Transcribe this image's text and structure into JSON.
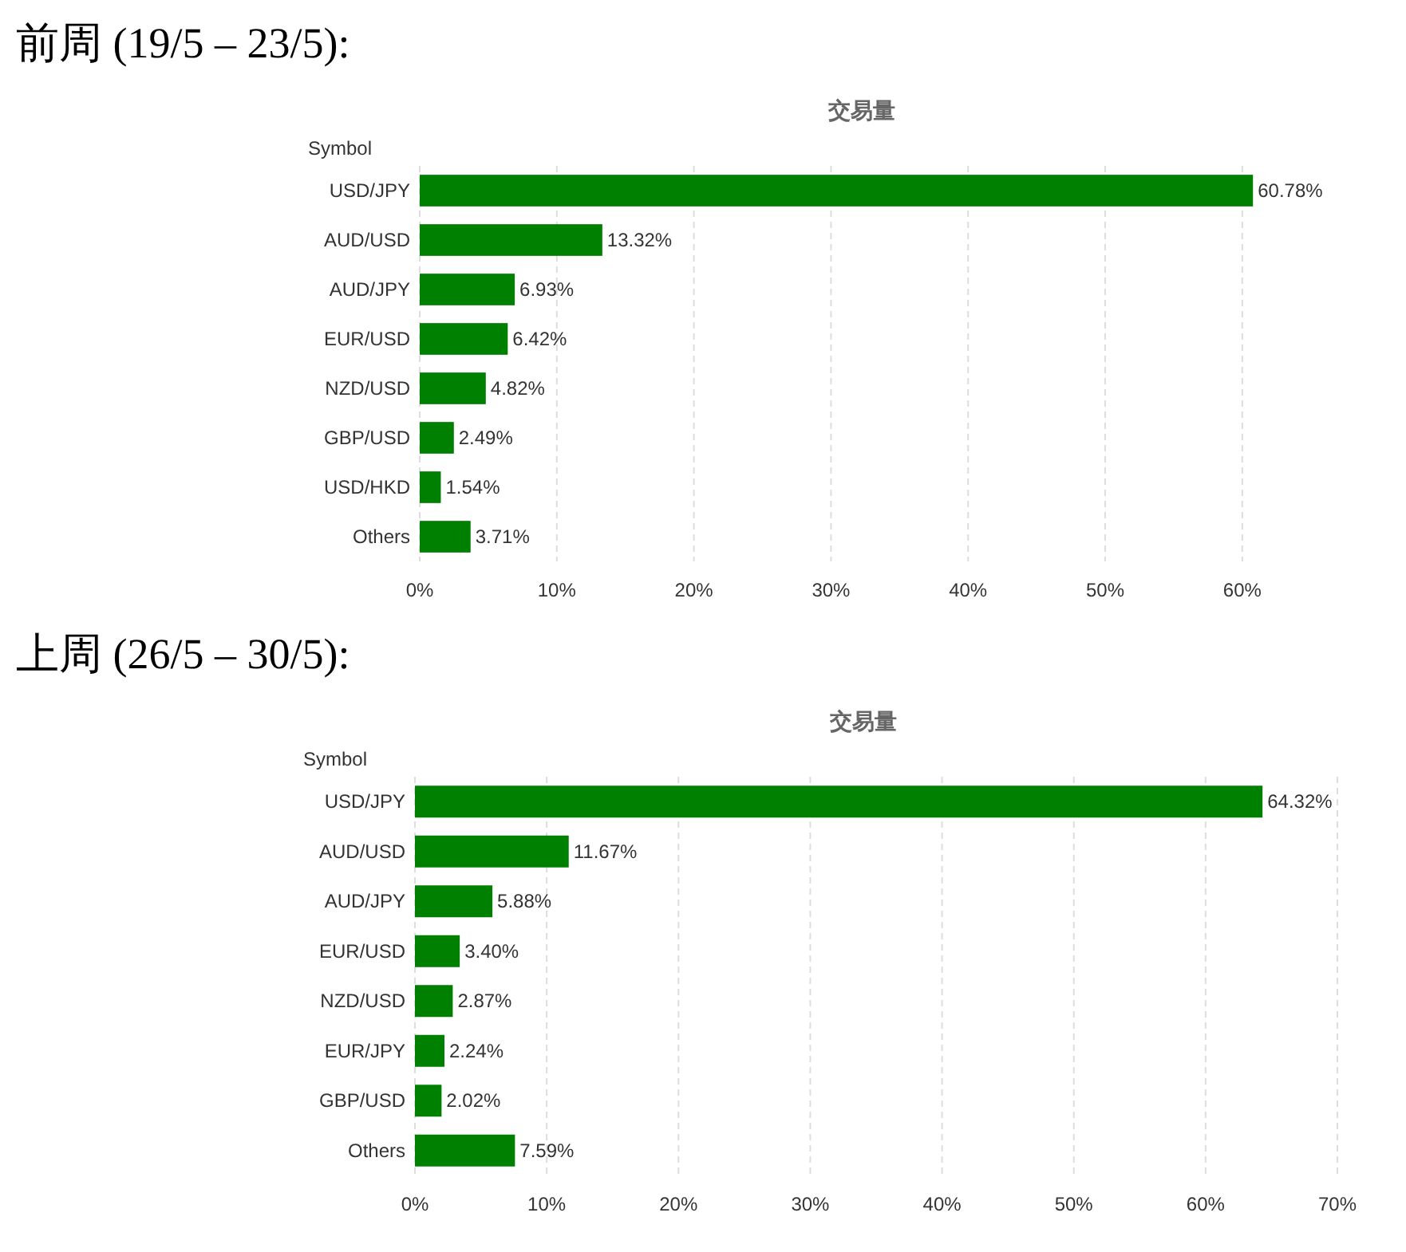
{
  "chart_data": [
    {
      "type": "bar",
      "orientation": "horizontal",
      "title": "前周 (19/5 – 23/5):",
      "subtitle": "交易量",
      "ylabel": "Symbol",
      "categories": [
        "USD/JPY",
        "AUD/USD",
        "AUD/JPY",
        "EUR/USD",
        "NZD/USD",
        "GBP/USD",
        "USD/HKD",
        "Others"
      ],
      "series": [
        {
          "color": "#008000",
          "values": [
            60.78,
            13.32,
            6.93,
            6.42,
            4.82,
            2.49,
            1.54,
            3.71
          ],
          "value_labels": [
            "60.78%",
            "13.32%",
            "6.93%",
            "6.42%",
            "4.82%",
            "2.49%",
            "1.54%",
            "3.71%"
          ]
        }
      ],
      "xlim": [
        0,
        61
      ],
      "xticks": [
        {
          "value": 0,
          "label": "0%"
        },
        {
          "value": 10,
          "label": "10%"
        },
        {
          "value": 20,
          "label": "20%"
        },
        {
          "value": 30,
          "label": "30%"
        },
        {
          "value": 40,
          "label": "40%"
        },
        {
          "value": 50,
          "label": "50%"
        },
        {
          "value": 60,
          "label": "60%"
        }
      ],
      "grid": "x"
    },
    {
      "type": "bar",
      "orientation": "horizontal",
      "title": "上周 (26/5 – 30/5):",
      "subtitle": "交易量",
      "ylabel": "Symbol",
      "categories": [
        "USD/JPY",
        "AUD/USD",
        "AUD/JPY",
        "EUR/USD",
        "NZD/USD",
        "EUR/JPY",
        "GBP/USD",
        "Others"
      ],
      "series": [
        {
          "color": "#008000",
          "values": [
            64.32,
            11.67,
            5.88,
            3.4,
            2.87,
            2.24,
            2.02,
            7.59
          ],
          "value_labels": [
            "64.32%",
            "11.67%",
            "5.88%",
            "3.40%",
            "2.87%",
            "2.24%",
            "2.02%",
            "7.59%"
          ]
        }
      ],
      "xlim": [
        0,
        70
      ],
      "xticks": [
        {
          "value": 0,
          "label": "0%"
        },
        {
          "value": 10,
          "label": "10%"
        },
        {
          "value": 20,
          "label": "20%"
        },
        {
          "value": 30,
          "label": "30%"
        },
        {
          "value": 40,
          "label": "40%"
        },
        {
          "value": 50,
          "label": "50%"
        },
        {
          "value": 60,
          "label": "60%"
        },
        {
          "value": 70,
          "label": "70%"
        }
      ],
      "grid": "x"
    }
  ]
}
